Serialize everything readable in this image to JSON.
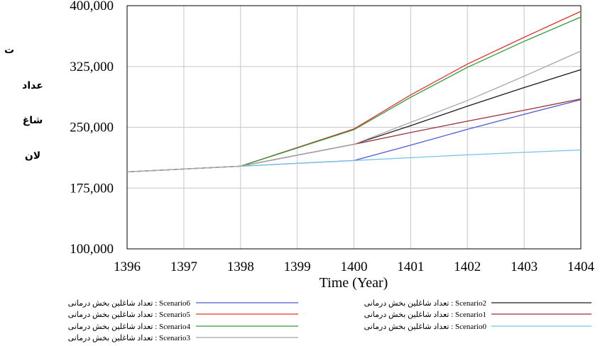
{
  "chart_data": {
    "type": "line",
    "xlabel": "Time (Year)",
    "ylabel_lines": [
      "ت",
      "عداد",
      "شاغ",
      "لان"
    ],
    "xlim": [
      1396,
      1404
    ],
    "ylim": [
      100000,
      400000
    ],
    "x": [
      1396,
      1397,
      1398,
      1399,
      1400,
      1401,
      1402,
      1403,
      1404
    ],
    "x_tick_labels": [
      "1396",
      "1397",
      "1398",
      "1399",
      "1400",
      "1401",
      "1402",
      "1403",
      "1404"
    ],
    "y_ticks": [
      100000,
      175000,
      250000,
      325000,
      400000
    ],
    "y_tick_labels": [
      "100,000",
      "175,000",
      "250,000",
      "325,000",
      "400,000"
    ],
    "grid": true,
    "legend_position": "bottom",
    "series": [
      {
        "name": "تعداد شاغلین بخش درمانی : Scenario6",
        "color": "#4b5bd6",
        "values": [
          195000,
          198500,
          202000,
          205500,
          209000,
          228000,
          247500,
          266000,
          284000
        ]
      },
      {
        "name": "تعداد شاغلین بخش درمانی : Scenario2",
        "color": "#1a1a1a",
        "values": [
          195000,
          198500,
          202000,
          215500,
          229000,
          252000,
          276000,
          299000,
          321000
        ]
      },
      {
        "name": "تعداد شاغلین بخش درمانی : Scenario5",
        "color": "#e8322b",
        "values": [
          195000,
          198500,
          202000,
          225000,
          248000,
          290000,
          328000,
          361000,
          393000
        ]
      },
      {
        "name": "تعداد شاغلین بخش درمانی : Scenario1",
        "color": "#9b2f3a",
        "values": [
          195000,
          198500,
          202000,
          215500,
          229000,
          243500,
          257500,
          271000,
          285000
        ]
      },
      {
        "name": "تعداد شاغلین بخش درمانی : Scenario4",
        "color": "#2f9a3c",
        "values": [
          195000,
          198500,
          202000,
          224500,
          247000,
          287000,
          324000,
          356000,
          386000
        ]
      },
      {
        "name": "تعداد شاغلین بخش درمانی : Scenario0",
        "color": "#74c3e8",
        "values": [
          195000,
          198500,
          202000,
          205500,
          209000,
          212500,
          216000,
          219000,
          222000
        ]
      },
      {
        "name": "تعداد شاغلین بخش درمانی : Scenario3",
        "color": "#a8a8a8",
        "values": [
          195000,
          198500,
          202000,
          215500,
          229000,
          256000,
          283000,
          313000,
          344000
        ]
      }
    ]
  }
}
